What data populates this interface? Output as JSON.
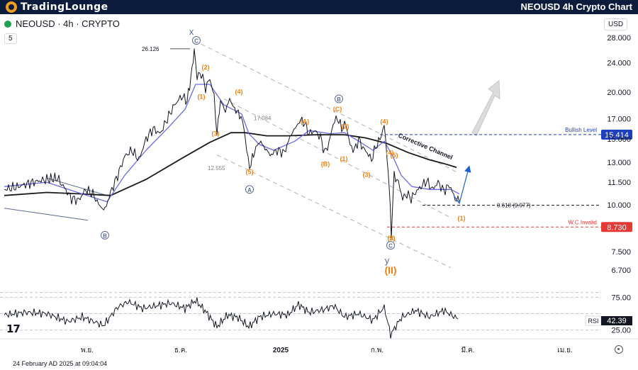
{
  "header": {
    "brand": "TradingLounge",
    "title": "NEOUSD 4h Crypto Chart"
  },
  "symbol_line": "NEOUSD · 4h · CRYPTO",
  "indicator_count": "5",
  "currency": "USD",
  "date_stamp": "24 February AD 2025 at 09:04:04",
  "tv_logo": "17",
  "colors": {
    "price": "#131722",
    "ma_fast": "#6a6ae8",
    "ma_slow": "#1a1a1a",
    "wave_orange": "#f08010",
    "wave_blue_grey": "#5a6a90",
    "bullish": "#1e3fbf",
    "invalid": "#e53935",
    "channel": "#b0b0b0",
    "header_bg": "#0c1c3c"
  },
  "chart_data": [
    {
      "type": "line",
      "title": "NEOUSD 4h",
      "scale": "log",
      "ylim": [
        6.2,
        30
      ],
      "y_ticks": [
        6.7,
        7.5,
        10.0,
        11.5,
        13.0,
        15.0,
        17.0,
        20.0,
        24.0,
        28.0
      ],
      "y_tick_labels": [
        "6.700",
        "7.500",
        "10.000",
        "11.500",
        "13.000",
        "15.000",
        "17.000",
        "20.000",
        "24.000",
        "28.000"
      ],
      "x_tick_labels": [
        "พ.ย.",
        "ธ.ค.",
        "2025",
        "ก.พ.",
        "มี.ค.",
        "เม.ย."
      ],
      "price_path": [
        [
          0,
          11.0
        ],
        [
          20,
          11.2
        ],
        [
          40,
          11.5
        ],
        [
          60,
          11.7
        ],
        [
          75,
          11.8
        ],
        [
          85,
          11.1
        ],
        [
          95,
          10.4
        ],
        [
          105,
          10.3
        ],
        [
          115,
          11.0
        ],
        [
          125,
          10.7
        ],
        [
          135,
          9.9
        ],
        [
          142,
          9.7
        ],
        [
          150,
          10.8
        ],
        [
          160,
          12.0
        ],
        [
          170,
          13.5
        ],
        [
          180,
          14.0
        ],
        [
          190,
          13.2
        ],
        [
          200,
          15.0
        ],
        [
          210,
          16.0
        ],
        [
          220,
          15.5
        ],
        [
          230,
          17.0
        ],
        [
          240,
          18.5
        ],
        [
          250,
          19.5
        ],
        [
          258,
          19.0
        ],
        [
          265,
          23.0
        ],
        [
          268,
          26.1
        ],
        [
          272,
          22.0
        ],
        [
          278,
          22.5
        ],
        [
          284,
          20.5
        ],
        [
          290,
          21.8
        ],
        [
          296,
          19.5
        ],
        [
          300,
          15.5
        ],
        [
          305,
          19.0
        ],
        [
          312,
          17.8
        ],
        [
          318,
          19.2
        ],
        [
          325,
          18.0
        ],
        [
          332,
          17.5
        ],
        [
          338,
          16.2
        ],
        [
          342,
          14.0
        ],
        [
          346,
          12.6
        ],
        [
          350,
          13.3
        ],
        [
          355,
          14.2
        ],
        [
          360,
          14.8
        ],
        [
          368,
          14.2
        ],
        [
          375,
          13.6
        ],
        [
          385,
          14.0
        ],
        [
          395,
          13.8
        ],
        [
          405,
          15.5
        ],
        [
          412,
          16.2
        ],
        [
          418,
          16.9
        ],
        [
          424,
          16.5
        ],
        [
          430,
          15.5
        ],
        [
          438,
          15.8
        ],
        [
          446,
          15.2
        ],
        [
          452,
          13.8
        ],
        [
          458,
          14.6
        ],
        [
          464,
          16.5
        ],
        [
          470,
          17.1
        ],
        [
          476,
          16.0
        ],
        [
          482,
          16.5
        ],
        [
          488,
          14.4
        ],
        [
          494,
          14.0
        ],
        [
          500,
          15.0
        ],
        [
          506,
          14.2
        ],
        [
          512,
          13.8
        ],
        [
          518,
          13.2
        ],
        [
          524,
          14.3
        ],
        [
          530,
          15.0
        ],
        [
          536,
          16.3
        ],
        [
          540,
          13.5
        ],
        [
          543,
          11.2
        ],
        [
          546,
          8.4
        ],
        [
          550,
          12.0
        ],
        [
          556,
          11.5
        ],
        [
          562,
          10.4
        ],
        [
          568,
          10.7
        ],
        [
          574,
          10.4
        ],
        [
          580,
          10.8
        ],
        [
          588,
          11.2
        ],
        [
          596,
          11.6
        ],
        [
          604,
          11.0
        ],
        [
          612,
          11.5
        ],
        [
          620,
          10.9
        ],
        [
          628,
          11.3
        ],
        [
          636,
          10.4
        ],
        [
          642,
          10.2
        ]
      ],
      "ma_fast": [
        [
          0,
          11.2
        ],
        [
          60,
          11.5
        ],
        [
          110,
          10.7
        ],
        [
          145,
          10.2
        ],
        [
          170,
          12.0
        ],
        [
          200,
          14.0
        ],
        [
          230,
          16.0
        ],
        [
          255,
          18.0
        ],
        [
          270,
          21.0
        ],
        [
          290,
          21.0
        ],
        [
          310,
          18.5
        ],
        [
          335,
          17.5
        ],
        [
          345,
          15.5
        ],
        [
          360,
          14.5
        ],
        [
          380,
          14.0
        ],
        [
          410,
          14.8
        ],
        [
          430,
          15.8
        ],
        [
          460,
          15.5
        ],
        [
          480,
          15.6
        ],
        [
          500,
          14.8
        ],
        [
          520,
          14.0
        ],
        [
          536,
          14.8
        ],
        [
          548,
          13.5
        ],
        [
          560,
          12.0
        ],
        [
          575,
          11.2
        ],
        [
          600,
          11.0
        ],
        [
          630,
          11.0
        ],
        [
          642,
          10.7
        ]
      ],
      "ma_slow": [
        [
          0,
          10.6
        ],
        [
          60,
          10.8
        ],
        [
          110,
          10.7
        ],
        [
          150,
          10.6
        ],
        [
          200,
          11.7
        ],
        [
          250,
          13.3
        ],
        [
          290,
          14.7
        ],
        [
          320,
          15.6
        ],
        [
          340,
          15.6
        ],
        [
          370,
          15.3
        ],
        [
          400,
          15.3
        ],
        [
          440,
          15.4
        ],
        [
          480,
          15.4
        ],
        [
          510,
          15.1
        ],
        [
          540,
          14.6
        ],
        [
          570,
          13.8
        ],
        [
          600,
          13.2
        ],
        [
          620,
          12.9
        ],
        [
          638,
          12.6
        ]
      ],
      "rsi": [
        [
          0,
          48
        ],
        [
          30,
          52
        ],
        [
          60,
          50
        ],
        [
          90,
          38
        ],
        [
          110,
          45
        ],
        [
          140,
          32
        ],
        [
          160,
          60
        ],
        [
          175,
          68
        ],
        [
          195,
          58
        ],
        [
          215,
          62
        ],
        [
          235,
          66
        ],
        [
          255,
          58
        ],
        [
          270,
          70
        ],
        [
          285,
          52
        ],
        [
          300,
          30
        ],
        [
          315,
          48
        ],
        [
          330,
          44
        ],
        [
          345,
          30
        ],
        [
          360,
          45
        ],
        [
          380,
          50
        ],
        [
          400,
          48
        ],
        [
          415,
          64
        ],
        [
          430,
          52
        ],
        [
          450,
          56
        ],
        [
          465,
          62
        ],
        [
          480,
          45
        ],
        [
          500,
          50
        ],
        [
          520,
          40
        ],
        [
          536,
          60
        ],
        [
          545,
          18
        ],
        [
          560,
          44
        ],
        [
          580,
          55
        ],
        [
          600,
          45
        ],
        [
          620,
          55
        ],
        [
          640,
          42
        ]
      ],
      "rsi_ylim": [
        15,
        85
      ],
      "rsi_ticks": [
        25,
        75
      ],
      "rsi_tick_labels": [
        "25.00",
        "75.00"
      ],
      "rsi_label": "RSI",
      "rsi_value": "42.39",
      "levels": [
        {
          "value": 15.414,
          "label": "Bullish Level",
          "tag": "15.414",
          "color": "#1e3fbf"
        },
        {
          "value": 9.977,
          "label": "0.618 (9.977)",
          "color": "#131722"
        },
        {
          "value": 8.73,
          "label": "W.C.Invalid",
          "tag": "8.730",
          "color": "#e53935"
        }
      ],
      "price_labels": [
        {
          "text": "26.126",
          "value": 26.126
        },
        {
          "text": "17.084",
          "value": 17.084
        },
        {
          "text": "12.555",
          "value": 12.555
        }
      ],
      "channel_label": "Corrective Channel",
      "wave_labels": {
        "orange": [
          "(1)",
          "(2)",
          "(3)",
          "(4)",
          "(5)",
          "(A)",
          "(B)",
          "(C)",
          "(1)",
          "(2)",
          "(3)",
          "(4)",
          "(5)",
          "(1)",
          "(2)",
          "(4)",
          "(3)",
          "(5)",
          "(II)"
        ],
        "circled": [
          "C",
          "A",
          "B",
          "B",
          "C"
        ],
        "letters": [
          "x",
          "y"
        ]
      }
    }
  ]
}
